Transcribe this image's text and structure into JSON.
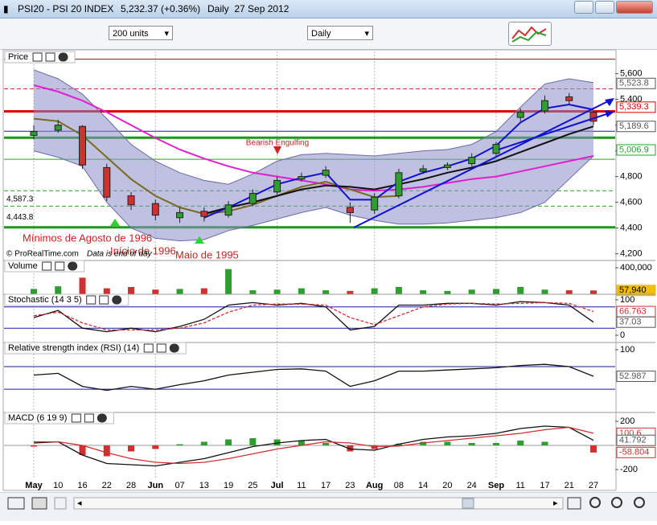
{
  "window": {
    "symbol": "PSI20 - PSI 20 INDEX",
    "quote": "5,232.37 (+0.36%)",
    "period": "Daily  27 Sep 2012",
    "units": "200 units",
    "timeframe": "Daily",
    "credit": "© ProRealTime.com",
    "note": "Data is end of day"
  },
  "chart_data": [
    {
      "type": "candlestick",
      "title": "Price",
      "categories": [
        "May",
        "10",
        "16",
        "22",
        "28",
        "Jun",
        "07",
        "13",
        "19",
        "25",
        "Jul",
        "11",
        "17",
        "23",
        "Aug",
        "08",
        "14",
        "20",
        "24",
        "Sep",
        "11",
        "17",
        "21",
        "27"
      ],
      "open": [
        5120,
        5160,
        5190,
        4870,
        4650,
        4590,
        4480,
        4530,
        4500,
        4590,
        4680,
        4780,
        4810,
        4560,
        4540,
        4650,
        4840,
        4870,
        4900,
        4980,
        5260,
        5310,
        5420,
        5300
      ],
      "high": [
        5200,
        5240,
        5200,
        4900,
        4680,
        4620,
        4560,
        4560,
        4610,
        4700,
        4800,
        4830,
        4880,
        4600,
        4670,
        4860,
        4890,
        4910,
        4980,
        5070,
        5330,
        5430,
        5450,
        5310
      ],
      "low": [
        5090,
        5140,
        4860,
        4610,
        4540,
        4460,
        4440,
        4450,
        4480,
        4570,
        4660,
        4760,
        4790,
        4440,
        4510,
        4630,
        4820,
        4850,
        4880,
        4960,
        5230,
        5290,
        5360,
        5200
      ],
      "close": [
        5150,
        5200,
        4890,
        4640,
        4580,
        4500,
        4520,
        4490,
        4580,
        4670,
        4770,
        4800,
        4850,
        4520,
        4640,
        4830,
        4860,
        4890,
        4950,
        5050,
        5300,
        5390,
        5390,
        5230
      ],
      "up_color": "#2e9e2e",
      "down_color": "#d03030",
      "band": {
        "color": "#8c8cc8",
        "upper": [
          5630,
          5560,
          5440,
          5250,
          5050,
          4920,
          4830,
          4770,
          4740,
          4820,
          4920,
          4970,
          4980,
          4970,
          4960,
          4980,
          5000,
          5010,
          5050,
          5150,
          5340,
          5520,
          5560,
          5530
        ],
        "lower": [
          5000,
          4950,
          4880,
          4600,
          4400,
          4320,
          4300,
          4310,
          4380,
          4420,
          4470,
          4520,
          4560,
          4500,
          4460,
          4430,
          4430,
          4440,
          4460,
          4480,
          4520,
          4600,
          4780,
          4960
        ]
      },
      "lines": [
        {
          "color": "#e020d0",
          "values": [
            5510,
            5460,
            5390,
            5300,
            5200,
            5100,
            5010,
            4940,
            4880,
            4830,
            4800,
            4770,
            4740,
            4700,
            4690,
            4700,
            4720,
            4750,
            4780,
            4800,
            4840,
            4880,
            4920,
            4960
          ]
        },
        {
          "color": "#7a6a20",
          "values": [
            5250,
            5230,
            5120,
            4950,
            4780,
            4650,
            4560,
            4510,
            4530,
            4580,
            4650,
            4720,
            4760,
            4700,
            4640,
            4650,
            null,
            null,
            null,
            null,
            null,
            null,
            null,
            null
          ]
        },
        {
          "color": "#111111",
          "values": [
            null,
            null,
            null,
            null,
            null,
            null,
            null,
            4510,
            4560,
            4600,
            4650,
            4700,
            4730,
            4720,
            4700,
            4740,
            4780,
            4830,
            4870,
            4920,
            4990,
            5060,
            5130,
            5190
          ]
        },
        {
          "color": "#1010d0",
          "values": [
            null,
            null,
            null,
            null,
            null,
            null,
            null,
            4480,
            4560,
            4650,
            4740,
            4790,
            4830,
            4620,
            4620,
            4760,
            4830,
            4880,
            4940,
            5040,
            5220,
            5330,
            5360,
            5320
          ]
        }
      ],
      "levels": [
        {
          "value": 5712,
          "color": "#8b1a1a",
          "style": "solid"
        },
        {
          "value": 5482,
          "color": "#d03030",
          "style": "dashed"
        },
        {
          "value": 5307,
          "color": "#dd0000",
          "style": "thick"
        },
        {
          "value": 5152,
          "color": "#1a1aa0",
          "style": "solid"
        },
        {
          "value": 5102,
          "color": "#1a9a1a",
          "style": "thick"
        },
        {
          "value": 4934,
          "color": "#2aa02a",
          "style": "solid"
        },
        {
          "value": 4690,
          "color": "#2aa02a",
          "style": "dashed"
        },
        {
          "value": 4570,
          "color": "#2aa02a",
          "style": "dashed"
        },
        {
          "value": 4405,
          "color": "#1a9a1a",
          "style": "thick"
        }
      ],
      "ylim": [
        4160,
        5760
      ],
      "yticks": [
        {
          "value": 4200,
          "label": "4,200"
        },
        {
          "value": 4400,
          "label": "4,400"
        },
        {
          "value": 4600,
          "label": "4,600"
        },
        {
          "value": 4800,
          "label": "4,800"
        },
        {
          "value": 5000,
          "label": "5,000"
        },
        {
          "value": 5200,
          "label": "5,200"
        },
        {
          "value": 5400,
          "label": "5,400"
        },
        {
          "value": 5600,
          "label": "5,600"
        }
      ],
      "tags": [
        {
          "value": 5523.8,
          "label": "5,523.8",
          "color": "#555555"
        },
        {
          "value": 5339.3,
          "label": "5,339.3",
          "color": "#dd0000"
        },
        {
          "value": 5189.6,
          "label": "5,189.6",
          "color": "#555555"
        },
        {
          "value": 5006.9,
          "label": "5,006.9",
          "color": "#2aa02a"
        }
      ],
      "left_tags": [
        {
          "value": 4587.3,
          "label": "4,587.3"
        },
        {
          "value": 4443.8,
          "label": "4,443.8"
        }
      ],
      "annotations": [
        "Bearish Engulfing",
        "Mínimos de Agosto de 1996",
        "Início de 1996",
        "Maio de 1995"
      ]
    },
    {
      "type": "bar",
      "title": "Volume",
      "values": [
        80000,
        120000,
        250000,
        90000,
        110000,
        70000,
        80000,
        90000,
        380000,
        60000,
        70000,
        90000,
        60000,
        50000,
        90000,
        110000,
        60000,
        50000,
        70000,
        80000,
        110000,
        70000,
        60000,
        57940
      ],
      "ylim": [
        0,
        485000
      ],
      "yticks": [
        {
          "value": 400000,
          "label": "400,000"
        }
      ],
      "tags": [
        {
          "value": 57940,
          "label": "57,940",
          "color": "#f0c000"
        }
      ]
    },
    {
      "type": "line",
      "title": "Stochastic (14 3 5)",
      "series": [
        {
          "color": "#111111",
          "values": [
            50,
            70,
            20,
            10,
            20,
            10,
            25,
            45,
            85,
            92,
            85,
            90,
            80,
            15,
            25,
            85,
            85,
            90,
            90,
            85,
            95,
            92,
            85,
            37.03
          ]
        },
        {
          "color": "#d03030",
          "dashed": true,
          "values": [
            55,
            65,
            35,
            15,
            15,
            15,
            20,
            35,
            65,
            85,
            88,
            88,
            85,
            50,
            30,
            55,
            80,
            88,
            90,
            88,
            90,
            92,
            90,
            66.763
          ]
        }
      ],
      "ylim": [
        -18,
        111
      ],
      "yticks": [
        0,
        100
      ],
      "levels": [
        {
          "value": 80,
          "color": "#1a1aa0",
          "style": "solid"
        },
        {
          "value": 20,
          "color": "#1a1aa0",
          "style": "solid"
        }
      ],
      "tags": [
        {
          "value": 66.763,
          "color": "#d03030"
        },
        {
          "value": 37.03,
          "color": "#555555"
        }
      ]
    },
    {
      "type": "line",
      "title": "Relative strength index (RSI) (14)",
      "series": [
        {
          "color": "#111111",
          "values": [
            55,
            58,
            35,
            28,
            35,
            30,
            38,
            45,
            55,
            60,
            65,
            66,
            62,
            35,
            45,
            62,
            62,
            64,
            66,
            68,
            72,
            74,
            70,
            52.987
          ]
        }
      ],
      "ylim": [
        -7,
        110
      ],
      "yticks": [
        100
      ],
      "levels": [
        {
          "value": 70,
          "color": "#1a1aa0",
          "style": "solid"
        },
        {
          "value": 30,
          "color": "#1a1aa0",
          "style": "solid"
        }
      ],
      "tags": [
        {
          "value": 52.987,
          "color": "#555555"
        }
      ]
    },
    {
      "type": "macd",
      "title": "MACD (6 19 9)",
      "histogram": [
        -10,
        0,
        -80,
        -90,
        -50,
        -30,
        10,
        30,
        50,
        60,
        50,
        40,
        20,
        -50,
        -30,
        15,
        30,
        30,
        20,
        20,
        40,
        30,
        0,
        -58.804
      ],
      "up_color": "#2e9e2e",
      "down_color": "#d03030",
      "series": [
        {
          "color": "#111111",
          "values": [
            20,
            30,
            -80,
            -150,
            -160,
            -170,
            -140,
            -110,
            -60,
            -10,
            20,
            40,
            50,
            -30,
            -40,
            10,
            50,
            70,
            80,
            100,
            140,
            160,
            150,
            41.792
          ]
        },
        {
          "color": "#d03030",
          "values": [
            30,
            30,
            0,
            -60,
            -110,
            -140,
            -150,
            -140,
            -110,
            -70,
            -30,
            0,
            30,
            20,
            -10,
            -5,
            20,
            40,
            60,
            80,
            100,
            130,
            150,
            100.6
          ]
        }
      ],
      "ylim": [
        -260,
        260
      ],
      "yticks": [
        -200,
        200
      ],
      "levels": [
        {
          "value": 0,
          "color": "#999999",
          "style": "solid"
        }
      ],
      "tags": [
        {
          "value": 100.6,
          "color": "#d03030"
        },
        {
          "value": 41.792,
          "color": "#555555"
        },
        {
          "value": -58.804,
          "color": "#d03030"
        }
      ]
    }
  ]
}
